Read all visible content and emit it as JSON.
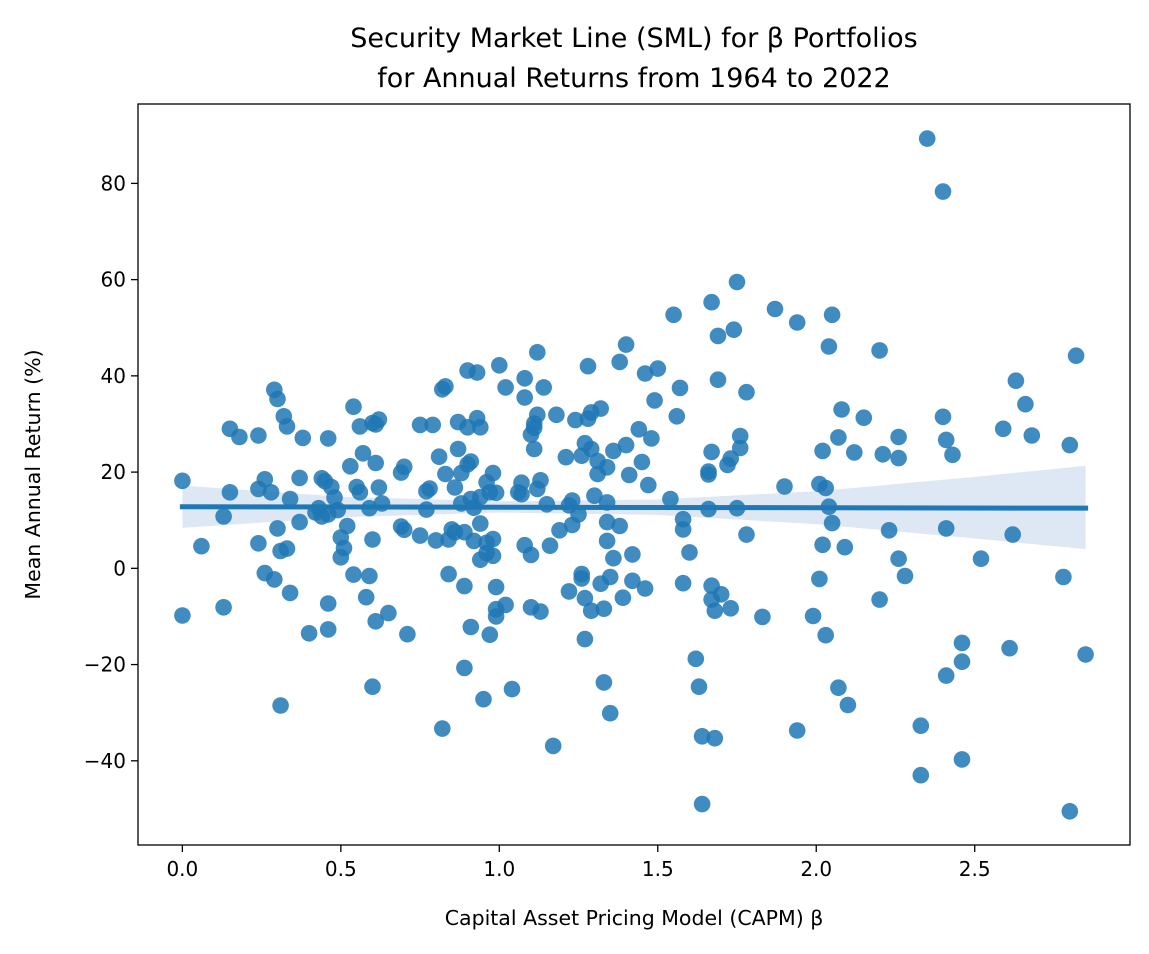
{
  "chart_data": {
    "type": "scatter",
    "title": "Security Market Line (SML) for β Portfolios",
    "subtitle": "for Annual Returns from 1964 to 2022",
    "xlabel": "Capital Asset Pricing Model (CAPM) β",
    "ylabel": "Mean Annual Return (%)",
    "xlim": [
      -0.14,
      2.99
    ],
    "ylim": [
      -57.5,
      96.5
    ],
    "xticks": [
      0.0,
      0.5,
      1.0,
      1.5,
      2.0,
      2.5
    ],
    "xtick_labels": [
      "0.0",
      "0.5",
      "1.0",
      "1.5",
      "2.0",
      "2.5"
    ],
    "yticks": [
      -40,
      -20,
      0,
      20,
      40,
      60,
      80
    ],
    "ytick_labels": [
      "−40",
      "−20",
      "0",
      "20",
      "40",
      "60",
      "80"
    ],
    "grid": false,
    "colors": {
      "points": "#1f77b4",
      "line": "#1f77b4",
      "band": "#c6d9ec"
    },
    "regression": {
      "x": [
        0.0,
        2.85
      ],
      "y": [
        12.8,
        12.5
      ]
    },
    "confidence_band": {
      "x": [
        0.0,
        0.5,
        1.0,
        1.5,
        2.0,
        2.5,
        2.85
      ],
      "upper": [
        17.2,
        14.9,
        13.9,
        14.3,
        16.0,
        19.0,
        21.3
      ],
      "lower": [
        8.4,
        10.6,
        11.6,
        11.1,
        9.2,
        6.2,
        4.0
      ]
    },
    "points": [
      [
        0.0,
        18.2
      ],
      [
        0.0,
        -9.8
      ],
      [
        0.06,
        4.6
      ],
      [
        0.13,
        10.8
      ],
      [
        0.13,
        -8.1
      ],
      [
        0.15,
        15.8
      ],
      [
        0.15,
        29.0
      ],
      [
        0.18,
        27.3
      ],
      [
        0.24,
        5.2
      ],
      [
        0.24,
        16.5
      ],
      [
        0.24,
        27.6
      ],
      [
        0.26,
        18.5
      ],
      [
        0.26,
        -1.0
      ],
      [
        0.28,
        15.8
      ],
      [
        0.29,
        37.1
      ],
      [
        0.29,
        -2.3
      ],
      [
        0.3,
        8.3
      ],
      [
        0.3,
        35.2
      ],
      [
        0.31,
        3.6
      ],
      [
        0.31,
        -28.5
      ],
      [
        0.32,
        31.6
      ],
      [
        0.33,
        4.1
      ],
      [
        0.33,
        29.5
      ],
      [
        0.34,
        14.4
      ],
      [
        0.34,
        -5.1
      ],
      [
        0.37,
        9.6
      ],
      [
        0.37,
        18.8
      ],
      [
        0.38,
        27.1
      ],
      [
        0.4,
        -13.5
      ],
      [
        0.42,
        11.6
      ],
      [
        0.43,
        12.5
      ],
      [
        0.44,
        18.7
      ],
      [
        0.44,
        10.8
      ],
      [
        0.45,
        18.1
      ],
      [
        0.46,
        11.2
      ],
      [
        0.46,
        27.0
      ],
      [
        0.46,
        -7.3
      ],
      [
        0.46,
        -12.7
      ],
      [
        0.47,
        16.9
      ],
      [
        0.48,
        14.7
      ],
      [
        0.49,
        12.1
      ],
      [
        0.5,
        6.4
      ],
      [
        0.5,
        2.3
      ],
      [
        0.51,
        4.2
      ],
      [
        0.52,
        8.8
      ],
      [
        0.53,
        21.2
      ],
      [
        0.54,
        33.6
      ],
      [
        0.54,
        -1.3
      ],
      [
        0.55,
        16.9
      ],
      [
        0.56,
        15.8
      ],
      [
        0.56,
        29.5
      ],
      [
        0.57,
        23.9
      ],
      [
        0.58,
        -6.0
      ],
      [
        0.59,
        12.5
      ],
      [
        0.59,
        -1.6
      ],
      [
        0.6,
        30.2
      ],
      [
        0.6,
        6.0
      ],
      [
        0.6,
        -24.6
      ],
      [
        0.61,
        29.9
      ],
      [
        0.61,
        21.9
      ],
      [
        0.61,
        -11.0
      ],
      [
        0.62,
        30.9
      ],
      [
        0.62,
        16.8
      ],
      [
        0.63,
        13.5
      ],
      [
        0.65,
        -9.3
      ],
      [
        0.69,
        19.9
      ],
      [
        0.69,
        8.7
      ],
      [
        0.7,
        8.0
      ],
      [
        0.7,
        21.1
      ],
      [
        0.71,
        -13.7
      ],
      [
        0.75,
        6.8
      ],
      [
        0.75,
        29.8
      ],
      [
        0.77,
        12.2
      ],
      [
        0.77,
        16.0
      ],
      [
        0.78,
        16.6
      ],
      [
        0.79,
        29.8
      ],
      [
        0.8,
        5.8
      ],
      [
        0.81,
        23.2
      ],
      [
        0.82,
        37.2
      ],
      [
        0.82,
        -33.3
      ],
      [
        0.83,
        37.8
      ],
      [
        0.83,
        19.6
      ],
      [
        0.84,
        -1.2
      ],
      [
        0.84,
        6.0
      ],
      [
        0.85,
        8.1
      ],
      [
        0.86,
        7.5
      ],
      [
        0.86,
        16.8
      ],
      [
        0.87,
        24.8
      ],
      [
        0.87,
        30.4
      ],
      [
        0.88,
        19.8
      ],
      [
        0.88,
        13.5
      ],
      [
        0.89,
        -3.7
      ],
      [
        0.89,
        7.5
      ],
      [
        0.89,
        -20.7
      ],
      [
        0.9,
        21.6
      ],
      [
        0.9,
        41.1
      ],
      [
        0.9,
        29.3
      ],
      [
        0.91,
        22.2
      ],
      [
        0.91,
        -12.2
      ],
      [
        0.91,
        14.4
      ],
      [
        0.92,
        5.7
      ],
      [
        0.92,
        12.6
      ],
      [
        0.93,
        31.2
      ],
      [
        0.93,
        40.7
      ],
      [
        0.94,
        29.3
      ],
      [
        0.94,
        14.8
      ],
      [
        0.94,
        1.8
      ],
      [
        0.94,
        9.3
      ],
      [
        0.95,
        -27.2
      ],
      [
        0.96,
        3.2
      ],
      [
        0.96,
        5.3
      ],
      [
        0.96,
        17.9
      ],
      [
        0.97,
        -13.8
      ],
      [
        0.97,
        15.8
      ],
      [
        0.98,
        6.1
      ],
      [
        0.98,
        2.6
      ],
      [
        0.98,
        19.8
      ],
      [
        0.99,
        15.7
      ],
      [
        0.99,
        -3.9
      ],
      [
        0.99,
        -8.5
      ],
      [
        0.99,
        -10.0
      ],
      [
        1.0,
        42.2
      ],
      [
        1.02,
        -7.6
      ],
      [
        1.02,
        37.6
      ],
      [
        1.04,
        -25.1
      ],
      [
        1.06,
        15.8
      ],
      [
        1.07,
        17.8
      ],
      [
        1.07,
        15.4
      ],
      [
        1.08,
        39.5
      ],
      [
        1.08,
        35.5
      ],
      [
        1.08,
        4.8
      ],
      [
        1.1,
        2.8
      ],
      [
        1.1,
        -8.1
      ],
      [
        1.1,
        27.8
      ],
      [
        1.11,
        29.2
      ],
      [
        1.11,
        30.1
      ],
      [
        1.11,
        24.8
      ],
      [
        1.12,
        44.9
      ],
      [
        1.12,
        31.9
      ],
      [
        1.12,
        16.5
      ],
      [
        1.13,
        18.3
      ],
      [
        1.13,
        -9.0
      ],
      [
        1.14,
        37.6
      ],
      [
        1.15,
        13.3
      ],
      [
        1.16,
        4.7
      ],
      [
        1.17,
        -36.9
      ],
      [
        1.18,
        31.9
      ],
      [
        1.19,
        7.9
      ],
      [
        1.21,
        23.1
      ],
      [
        1.22,
        13.1
      ],
      [
        1.22,
        -4.8
      ],
      [
        1.23,
        14.1
      ],
      [
        1.23,
        9.0
      ],
      [
        1.24,
        30.8
      ],
      [
        1.25,
        11.2
      ],
      [
        1.26,
        23.4
      ],
      [
        1.26,
        -1.2
      ],
      [
        1.26,
        -2.1
      ],
      [
        1.27,
        26.0
      ],
      [
        1.27,
        -14.7
      ],
      [
        1.27,
        -6.2
      ],
      [
        1.28,
        31.1
      ],
      [
        1.28,
        42.0
      ],
      [
        1.29,
        24.8
      ],
      [
        1.29,
        -8.8
      ],
      [
        1.29,
        32.4
      ],
      [
        1.3,
        15.1
      ],
      [
        1.31,
        22.3
      ],
      [
        1.31,
        19.6
      ],
      [
        1.32,
        33.2
      ],
      [
        1.32,
        -3.2
      ],
      [
        1.33,
        -23.7
      ],
      [
        1.33,
        -8.4
      ],
      [
        1.34,
        21.0
      ],
      [
        1.34,
        5.7
      ],
      [
        1.34,
        9.6
      ],
      [
        1.34,
        13.7
      ],
      [
        1.35,
        -1.8
      ],
      [
        1.35,
        -30.1
      ],
      [
        1.36,
        2.1
      ],
      [
        1.36,
        24.4
      ],
      [
        1.38,
        8.8
      ],
      [
        1.38,
        42.9
      ],
      [
        1.39,
        -6.1
      ],
      [
        1.4,
        25.6
      ],
      [
        1.4,
        46.5
      ],
      [
        1.41,
        19.4
      ],
      [
        1.42,
        -2.6
      ],
      [
        1.42,
        2.9
      ],
      [
        1.44,
        28.9
      ],
      [
        1.45,
        22.1
      ],
      [
        1.46,
        40.5
      ],
      [
        1.46,
        -4.2
      ],
      [
        1.47,
        17.3
      ],
      [
        1.48,
        27.0
      ],
      [
        1.49,
        34.9
      ],
      [
        1.5,
        41.5
      ],
      [
        1.54,
        14.4
      ],
      [
        1.55,
        52.7
      ],
      [
        1.56,
        31.6
      ],
      [
        1.57,
        37.5
      ],
      [
        1.58,
        8.1
      ],
      [
        1.58,
        -3.1
      ],
      [
        1.58,
        10.2
      ],
      [
        1.6,
        3.3
      ],
      [
        1.62,
        -18.8
      ],
      [
        1.63,
        -24.6
      ],
      [
        1.64,
        -34.9
      ],
      [
        1.64,
        -49.0
      ],
      [
        1.66,
        20.1
      ],
      [
        1.66,
        19.5
      ],
      [
        1.66,
        12.3
      ],
      [
        1.67,
        -3.6
      ],
      [
        1.67,
        -6.5
      ],
      [
        1.67,
        55.3
      ],
      [
        1.67,
        24.2
      ],
      [
        1.68,
        -35.3
      ],
      [
        1.68,
        -8.8
      ],
      [
        1.69,
        39.2
      ],
      [
        1.69,
        48.3
      ],
      [
        1.7,
        -5.4
      ],
      [
        1.72,
        21.5
      ],
      [
        1.73,
        -8.3
      ],
      [
        1.73,
        22.8
      ],
      [
        1.74,
        49.6
      ],
      [
        1.75,
        59.5
      ],
      [
        1.75,
        12.5
      ],
      [
        1.76,
        25.0
      ],
      [
        1.76,
        27.5
      ],
      [
        1.78,
        36.6
      ],
      [
        1.78,
        7.0
      ],
      [
        1.83,
        -10.1
      ],
      [
        1.87,
        53.9
      ],
      [
        1.9,
        17.0
      ],
      [
        1.94,
        51.1
      ],
      [
        1.94,
        -33.7
      ],
      [
        1.99,
        -9.9
      ],
      [
        2.01,
        -2.2
      ],
      [
        2.01,
        17.5
      ],
      [
        2.02,
        24.4
      ],
      [
        2.02,
        4.9
      ],
      [
        2.03,
        16.7
      ],
      [
        2.03,
        -13.9
      ],
      [
        2.04,
        46.1
      ],
      [
        2.04,
        12.8
      ],
      [
        2.05,
        52.7
      ],
      [
        2.05,
        9.4
      ],
      [
        2.07,
        27.2
      ],
      [
        2.07,
        -24.8
      ],
      [
        2.08,
        33.0
      ],
      [
        2.09,
        4.4
      ],
      [
        2.1,
        -28.4
      ],
      [
        2.12,
        24.1
      ],
      [
        2.15,
        31.3
      ],
      [
        2.2,
        45.3
      ],
      [
        2.2,
        -6.5
      ],
      [
        2.21,
        23.7
      ],
      [
        2.23,
        7.9
      ],
      [
        2.26,
        27.3
      ],
      [
        2.26,
        22.9
      ],
      [
        2.26,
        2.0
      ],
      [
        2.28,
        -1.6
      ],
      [
        2.33,
        -32.7
      ],
      [
        2.33,
        -43.0
      ],
      [
        2.35,
        89.3
      ],
      [
        2.4,
        31.5
      ],
      [
        2.4,
        78.3
      ],
      [
        2.41,
        8.3
      ],
      [
        2.41,
        26.7
      ],
      [
        2.41,
        -22.3
      ],
      [
        2.43,
        23.6
      ],
      [
        2.46,
        -15.5
      ],
      [
        2.46,
        -19.4
      ],
      [
        2.46,
        -39.7
      ],
      [
        2.52,
        2.0
      ],
      [
        2.59,
        29.0
      ],
      [
        2.61,
        -16.6
      ],
      [
        2.62,
        7.0
      ],
      [
        2.63,
        39.0
      ],
      [
        2.66,
        34.1
      ],
      [
        2.68,
        27.6
      ],
      [
        2.78,
        -1.8
      ],
      [
        2.8,
        25.6
      ],
      [
        2.8,
        -50.5
      ],
      [
        2.82,
        44.2
      ],
      [
        2.85,
        -17.9
      ]
    ]
  }
}
